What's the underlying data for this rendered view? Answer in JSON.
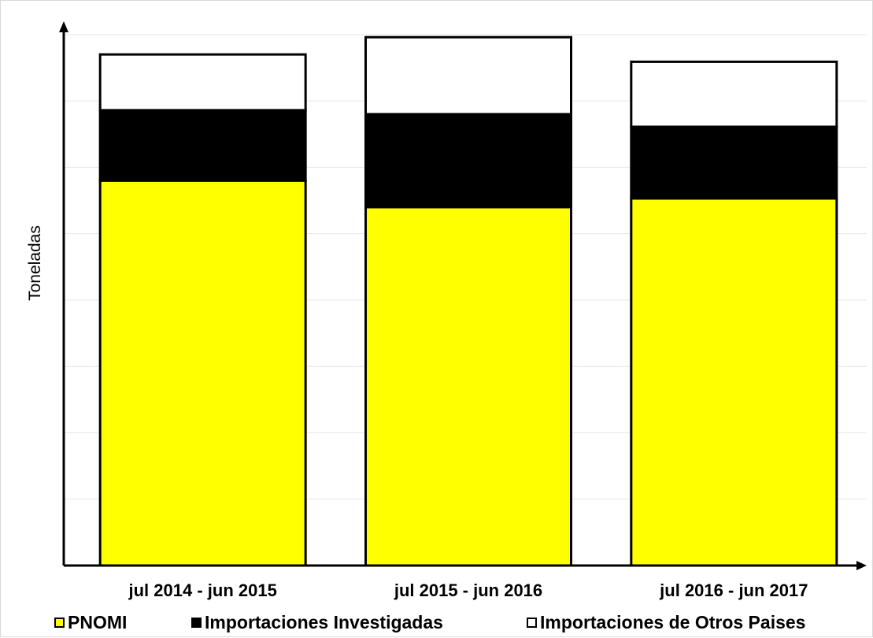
{
  "chart_data": {
    "type": "bar",
    "stacked": true,
    "categories": [
      "jul 2014 - jun 2015",
      "jul 2015 - jun 2016",
      "jul 2016 - jun 2017"
    ],
    "series": [
      {
        "name": "PNOMI",
        "color": "#ffff00",
        "values": [
          58,
          54,
          55.3
        ]
      },
      {
        "name": "Importaciones Investigadas",
        "color": "#000000",
        "values": [
          10.6,
          14,
          10.8
        ]
      },
      {
        "name": "Importaciones de Otros Paises",
        "color": "#ffffff",
        "values": [
          8.4,
          11.6,
          9.8
        ]
      }
    ],
    "title": "",
    "xlabel": "",
    "ylabel": "Toneladas",
    "ylim": [
      0,
      82
    ],
    "y_tick_labels_shown": false,
    "grid": true,
    "legend_position": "bottom"
  }
}
